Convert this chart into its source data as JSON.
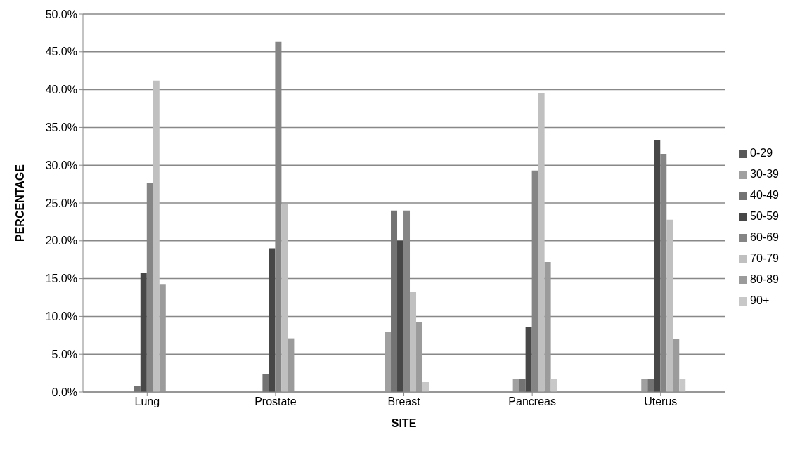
{
  "chart_data": {
    "type": "bar",
    "xlabel": "SITE",
    "ylabel": "PERCENTAGE",
    "categories": [
      "Lung",
      "Prostate",
      "Breast",
      "Pancreas",
      "Uterus"
    ],
    "series": [
      {
        "name": "0-29",
        "color": "#595959",
        "values": [
          0,
          0,
          0,
          0,
          0
        ]
      },
      {
        "name": "30-39",
        "color": "#a0a0a0",
        "values": [
          0,
          0,
          8.0,
          1.7,
          1.7
        ]
      },
      {
        "name": "40-49",
        "color": "#737373",
        "values": [
          0.8,
          2.4,
          24.0,
          1.7,
          1.7
        ]
      },
      {
        "name": "50-59",
        "color": "#474747",
        "values": [
          15.8,
          19.0,
          20.0,
          8.6,
          33.3
        ]
      },
      {
        "name": "60-69",
        "color": "#858585",
        "values": [
          27.7,
          46.3,
          24.0,
          29.3,
          31.5
        ]
      },
      {
        "name": "70-79",
        "color": "#c0c0c0",
        "values": [
          41.2,
          24.9,
          13.3,
          39.6,
          22.8
        ]
      },
      {
        "name": "80-89",
        "color": "#9b9b9b",
        "values": [
          14.2,
          7.1,
          9.3,
          17.2,
          7.0
        ]
      },
      {
        "name": "90+",
        "color": "#c8c8c8",
        "values": [
          0,
          0,
          1.3,
          1.7,
          1.7
        ]
      }
    ],
    "ylim": [
      0,
      50
    ],
    "yticks": [
      {
        "value": 0,
        "label": "0.0%"
      },
      {
        "value": 5,
        "label": "5.0%"
      },
      {
        "value": 10,
        "label": "10.0%"
      },
      {
        "value": 15,
        "label": "15.0%"
      },
      {
        "value": 20,
        "label": "20.0%"
      },
      {
        "value": 25,
        "label": "25.0%"
      },
      {
        "value": 30,
        "label": "30.0%"
      },
      {
        "value": 35,
        "label": "35.0%"
      },
      {
        "value": 40,
        "label": "40.0%"
      },
      {
        "value": 45,
        "label": "45.0%"
      },
      {
        "value": 50,
        "label": "50.0%"
      }
    ],
    "grid": "y",
    "legend": "right"
  }
}
